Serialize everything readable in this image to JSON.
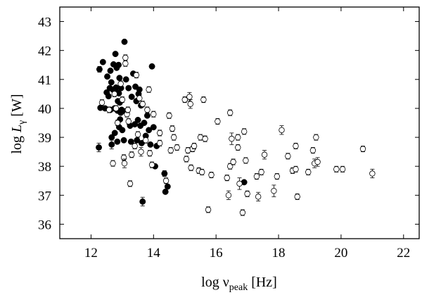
{
  "chart_data": {
    "type": "scatter",
    "xlabel": {
      "prefix": "log ν",
      "sub": "peak",
      "suffix": " [Hz]"
    },
    "ylabel": {
      "prefix": "log ",
      "italic": "L",
      "sub": "γ",
      "suffix": " [W]"
    },
    "xlim": [
      11,
      22.5
    ],
    "ylim": [
      35.5,
      43.5
    ],
    "x_ticks": [
      "12",
      "14",
      "16",
      "18",
      "20",
      "22"
    ],
    "y_ticks": [
      "36",
      "37",
      "38",
      "39",
      "40",
      "41",
      "42",
      "43"
    ],
    "grid": false,
    "legend": "none",
    "series": [
      {
        "marker": "filled-circle",
        "color": "#000000",
        "points": [
          [
            12.25,
            38.65,
            0.15
          ],
          [
            12.27,
            41.35,
            0.1
          ],
          [
            12.3,
            40.02,
            0
          ],
          [
            12.38,
            41.6,
            0
          ],
          [
            12.45,
            40.0,
            0
          ],
          [
            12.5,
            40.55,
            0
          ],
          [
            12.52,
            41.1,
            0
          ],
          [
            12.56,
            40.42,
            0
          ],
          [
            12.6,
            40.7,
            0
          ],
          [
            12.62,
            39.95,
            0
          ],
          [
            12.62,
            41.3,
            0
          ],
          [
            12.65,
            40.9,
            0
          ],
          [
            12.66,
            39.0,
            0
          ],
          [
            12.66,
            38.75,
            0.15
          ],
          [
            12.7,
            40.65,
            0
          ],
          [
            12.72,
            41.52,
            0
          ],
          [
            12.75,
            40.0,
            0
          ],
          [
            12.76,
            39.15,
            0
          ],
          [
            12.78,
            41.88,
            0
          ],
          [
            12.8,
            40.72,
            0
          ],
          [
            12.82,
            41.4,
            0
          ],
          [
            12.83,
            40.55,
            0
          ],
          [
            12.84,
            38.85,
            0
          ],
          [
            12.85,
            39.92,
            0
          ],
          [
            12.86,
            40.25,
            0
          ],
          [
            12.88,
            41.5,
            0
          ],
          [
            12.89,
            40.52,
            0
          ],
          [
            12.9,
            39.35,
            0
          ],
          [
            12.91,
            41.05,
            0
          ],
          [
            12.92,
            40.2,
            0
          ],
          [
            12.93,
            39.62,
            0
          ],
          [
            12.95,
            39.85,
            0
          ],
          [
            12.96,
            40.7,
            0
          ],
          [
            12.98,
            39.95,
            0
          ],
          [
            13.0,
            39.25,
            0
          ],
          [
            13.05,
            38.9,
            0
          ],
          [
            13.07,
            42.3,
            0
          ],
          [
            13.1,
            39.9,
            0
          ],
          [
            13.12,
            41.0,
            0
          ],
          [
            13.2,
            40.7,
            0
          ],
          [
            13.25,
            39.4,
            0
          ],
          [
            13.28,
            38.85,
            0
          ],
          [
            13.3,
            40.4,
            0
          ],
          [
            13.35,
            41.2,
            0
          ],
          [
            13.4,
            39.45,
            0
          ],
          [
            13.42,
            40.75,
            0
          ],
          [
            13.45,
            40.25,
            0
          ],
          [
            13.47,
            38.9,
            0
          ],
          [
            13.5,
            39.6,
            0
          ],
          [
            13.52,
            40.5,
            0
          ],
          [
            13.55,
            40.65,
            0
          ],
          [
            13.58,
            39.4,
            0
          ],
          [
            13.6,
            40.1,
            0
          ],
          [
            13.62,
            38.8,
            0
          ],
          [
            13.65,
            36.78,
            0.15
          ],
          [
            13.7,
            39.5,
            0
          ],
          [
            13.75,
            39.05,
            0
          ],
          [
            13.8,
            39.75,
            0
          ],
          [
            13.85,
            39.25,
            0
          ],
          [
            13.9,
            38.75,
            0
          ],
          [
            13.95,
            41.45,
            0
          ],
          [
            14.0,
            39.35,
            0
          ],
          [
            14.05,
            38.0,
            0
          ],
          [
            14.1,
            38.7,
            0
          ],
          [
            14.35,
            37.75,
            0.1
          ],
          [
            14.38,
            37.12,
            0
          ],
          [
            14.45,
            37.3,
            0
          ],
          [
            16.9,
            37.45,
            0
          ]
        ]
      },
      {
        "marker": "open-circle",
        "color": "#000000",
        "points": [
          [
            12.35,
            40.2,
            0.1
          ],
          [
            12.58,
            39.95,
            0.1
          ],
          [
            12.7,
            38.1,
            0.1
          ],
          [
            12.75,
            40.5,
            0.1
          ],
          [
            12.8,
            40.0,
            0.1
          ],
          [
            12.85,
            39.5,
            0.1
          ],
          [
            12.95,
            40.85,
            0.1
          ],
          [
            13.0,
            40.3,
            0.1
          ],
          [
            13.05,
            38.3,
            0.1
          ],
          [
            13.07,
            38.1,
            0.15
          ],
          [
            13.1,
            41.75,
            0.1
          ],
          [
            13.1,
            41.55,
            0.1
          ],
          [
            13.15,
            39.8,
            0.1
          ],
          [
            13.18,
            39.95,
            0.1
          ],
          [
            13.2,
            39.55,
            0.1
          ],
          [
            13.25,
            37.4,
            0.1
          ],
          [
            13.3,
            38.4,
            0.1
          ],
          [
            13.4,
            38.7,
            0.1
          ],
          [
            13.45,
            41.15,
            0.1
          ],
          [
            13.5,
            39.1,
            0.1
          ],
          [
            13.55,
            40.35,
            0.1
          ],
          [
            13.6,
            38.5,
            0.15
          ],
          [
            13.65,
            40.15,
            0.1
          ],
          [
            13.75,
            38.9,
            0.1
          ],
          [
            13.8,
            39.95,
            0.1
          ],
          [
            13.85,
            40.65,
            0.1
          ],
          [
            13.88,
            38.45,
            0.1
          ],
          [
            13.95,
            38.05,
            0.1
          ],
          [
            14.0,
            39.8,
            0.1
          ],
          [
            14.2,
            38.8,
            0.1
          ],
          [
            14.2,
            39.15,
            0.1
          ],
          [
            14.4,
            37.5,
            0.1
          ],
          [
            14.5,
            39.75,
            0.1
          ],
          [
            14.55,
            38.55,
            0.1
          ],
          [
            14.6,
            39.3,
            0.1
          ],
          [
            14.65,
            39.0,
            0.1
          ],
          [
            14.75,
            38.65,
            0.1
          ],
          [
            15.0,
            40.3,
            0.1
          ],
          [
            15.05,
            38.25,
            0.1
          ],
          [
            15.1,
            38.55,
            0.1
          ],
          [
            15.15,
            40.4,
            0.15
          ],
          [
            15.18,
            40.15,
            0.15
          ],
          [
            15.2,
            37.95,
            0.1
          ],
          [
            15.25,
            38.6,
            0.1
          ],
          [
            15.3,
            38.7,
            0.1
          ],
          [
            15.45,
            37.85,
            0.1
          ],
          [
            15.5,
            39.0,
            0.1
          ],
          [
            15.55,
            37.8,
            0.1
          ],
          [
            15.6,
            40.3,
            0.1
          ],
          [
            15.65,
            38.95,
            0.1
          ],
          [
            15.75,
            36.5,
            0.1
          ],
          [
            15.85,
            37.7,
            0.1
          ],
          [
            16.05,
            39.55,
            0.1
          ],
          [
            16.35,
            37.6,
            0.1
          ],
          [
            16.4,
            37.0,
            0.15
          ],
          [
            16.45,
            38.0,
            0.1
          ],
          [
            16.45,
            39.85,
            0.1
          ],
          [
            16.5,
            38.95,
            0.2
          ],
          [
            16.55,
            38.15,
            0.1
          ],
          [
            16.7,
            39.0,
            0.1
          ],
          [
            16.7,
            38.65,
            0.1
          ],
          [
            16.75,
            37.4,
            0.2
          ],
          [
            16.85,
            36.4,
            0.1
          ],
          [
            16.9,
            39.2,
            0.1
          ],
          [
            16.95,
            38.2,
            0.1
          ],
          [
            17.0,
            37.05,
            0.1
          ],
          [
            17.3,
            37.65,
            0.1
          ],
          [
            17.35,
            36.95,
            0.15
          ],
          [
            17.45,
            37.8,
            0.1
          ],
          [
            17.55,
            38.4,
            0.15
          ],
          [
            17.85,
            37.15,
            0.2
          ],
          [
            17.95,
            37.65,
            0.1
          ],
          [
            18.1,
            39.25,
            0.15
          ],
          [
            18.3,
            38.35,
            0.1
          ],
          [
            18.45,
            37.85,
            0.1
          ],
          [
            18.55,
            37.9,
            0.1
          ],
          [
            18.55,
            38.7,
            0.1
          ],
          [
            18.6,
            36.95,
            0.1
          ],
          [
            18.95,
            37.8,
            0.1
          ],
          [
            19.1,
            38.55,
            0.1
          ],
          [
            19.15,
            38.1,
            0.15
          ],
          [
            19.2,
            39.0,
            0.1
          ],
          [
            19.25,
            38.15,
            0.15
          ],
          [
            19.85,
            37.9,
            0.1
          ],
          [
            20.05,
            37.9,
            0.1
          ],
          [
            20.7,
            38.6,
            0.1
          ],
          [
            21.0,
            37.75,
            0.15
          ]
        ]
      }
    ]
  }
}
